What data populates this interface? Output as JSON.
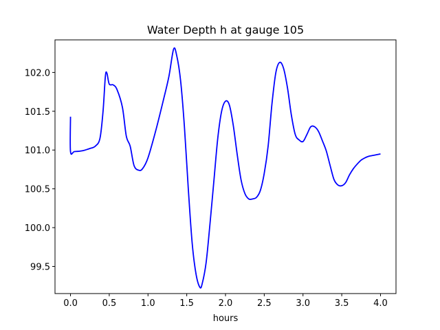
{
  "chart_data": {
    "type": "line",
    "title": "Water Depth h at gauge 105",
    "xlabel": "hours",
    "ylabel": "",
    "xlim": [
      -0.2,
      4.2
    ],
    "ylim": [
      99.15,
      102.42
    ],
    "xticks": [
      0.0,
      0.5,
      1.0,
      1.5,
      2.0,
      2.5,
      3.0,
      3.5,
      4.0
    ],
    "xtick_labels": [
      "0.0",
      "0.5",
      "1.0",
      "1.5",
      "2.0",
      "2.5",
      "3.0",
      "3.5",
      "4.0"
    ],
    "yticks": [
      99.5,
      100.0,
      100.5,
      101.0,
      101.5,
      102.0
    ],
    "ytick_labels": [
      "99.5",
      "100.0",
      "100.5",
      "101.0",
      "101.5",
      "102.0"
    ],
    "grid": false,
    "series": [
      {
        "color": "#0000ff",
        "x": [
          0.0,
          0.0,
          0.05,
          0.15,
          0.25,
          0.32,
          0.38,
          0.42,
          0.45,
          0.47,
          0.5,
          0.55,
          0.6,
          0.67,
          0.72,
          0.77,
          0.82,
          0.88,
          0.93,
          1.0,
          1.1,
          1.2,
          1.27,
          1.33,
          1.37,
          1.42,
          1.47,
          1.52,
          1.57,
          1.62,
          1.67,
          1.7,
          1.75,
          1.8,
          1.85,
          1.9,
          1.95,
          2.0,
          2.05,
          2.1,
          2.15,
          2.2,
          2.25,
          2.3,
          2.35,
          2.4,
          2.45,
          2.5,
          2.55,
          2.6,
          2.65,
          2.7,
          2.75,
          2.8,
          2.85,
          2.9,
          2.95,
          3.0,
          3.05,
          3.1,
          3.15,
          3.2,
          3.25,
          3.3,
          3.35,
          3.4,
          3.45,
          3.5,
          3.55,
          3.6,
          3.65,
          3.7,
          3.75,
          3.8,
          3.85,
          3.9,
          3.95,
          4.0
        ],
        "y": [
          101.43,
          100.98,
          100.98,
          100.99,
          101.02,
          101.05,
          101.15,
          101.5,
          101.95,
          101.99,
          101.85,
          101.84,
          101.78,
          101.55,
          101.18,
          101.05,
          100.8,
          100.74,
          100.76,
          100.9,
          101.25,
          101.65,
          101.95,
          102.3,
          102.22,
          101.9,
          101.3,
          100.5,
          99.8,
          99.4,
          99.23,
          99.28,
          99.55,
          100.05,
          100.6,
          101.15,
          101.5,
          101.63,
          101.58,
          101.32,
          100.95,
          100.62,
          100.44,
          100.37,
          100.37,
          100.39,
          100.48,
          100.7,
          101.05,
          101.6,
          102.0,
          102.13,
          102.05,
          101.8,
          101.45,
          101.2,
          101.13,
          101.11,
          101.2,
          101.3,
          101.3,
          101.24,
          101.12,
          100.99,
          100.8,
          100.62,
          100.55,
          100.54,
          100.58,
          100.68,
          100.76,
          100.82,
          100.87,
          100.9,
          100.92,
          100.93,
          100.94,
          100.95
        ]
      }
    ]
  }
}
